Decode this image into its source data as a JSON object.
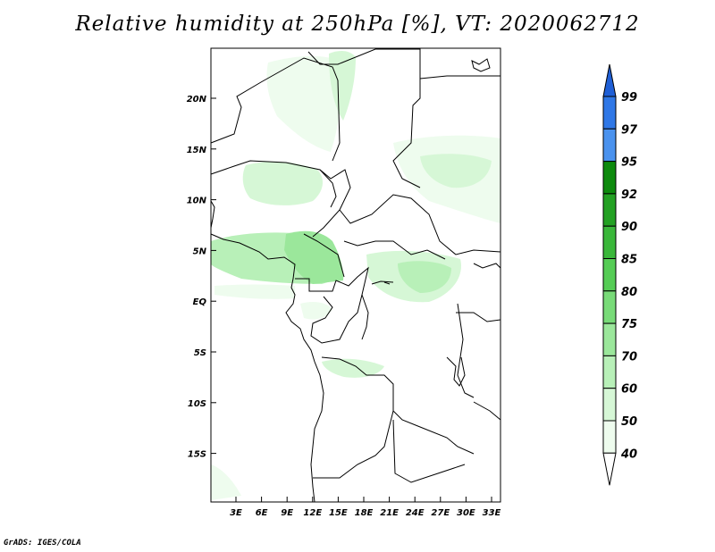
{
  "title": "Relative humidity at 250hPa [%], VT: 2020062712",
  "credit": "GrADS: IGES/COLA",
  "map": {
    "variable": "Relative humidity",
    "level": "250hPa",
    "unit": "%",
    "valid_time": "2020062712",
    "lat_ticks": [
      "20N",
      "15N",
      "10N",
      "5N",
      "EQ",
      "5S",
      "10S",
      "15S"
    ],
    "lon_ticks": [
      "3E",
      "6E",
      "9E",
      "12E",
      "15E",
      "18E",
      "21E",
      "24E",
      "27E",
      "30E",
      "33E"
    ]
  },
  "colorbar": {
    "levels": [
      "99",
      "97",
      "95",
      "92",
      "90",
      "85",
      "80",
      "75",
      "70",
      "60",
      "50",
      "40"
    ],
    "colors": [
      "#1f5fd6",
      "#2f77e6",
      "#4a92ee",
      "#0d8a0d",
      "#23a123",
      "#3ab73a",
      "#55cc55",
      "#78db78",
      "#9be79b",
      "#b8f0b8",
      "#d6f7d6",
      "#eefcee",
      "#ffffff"
    ]
  }
}
